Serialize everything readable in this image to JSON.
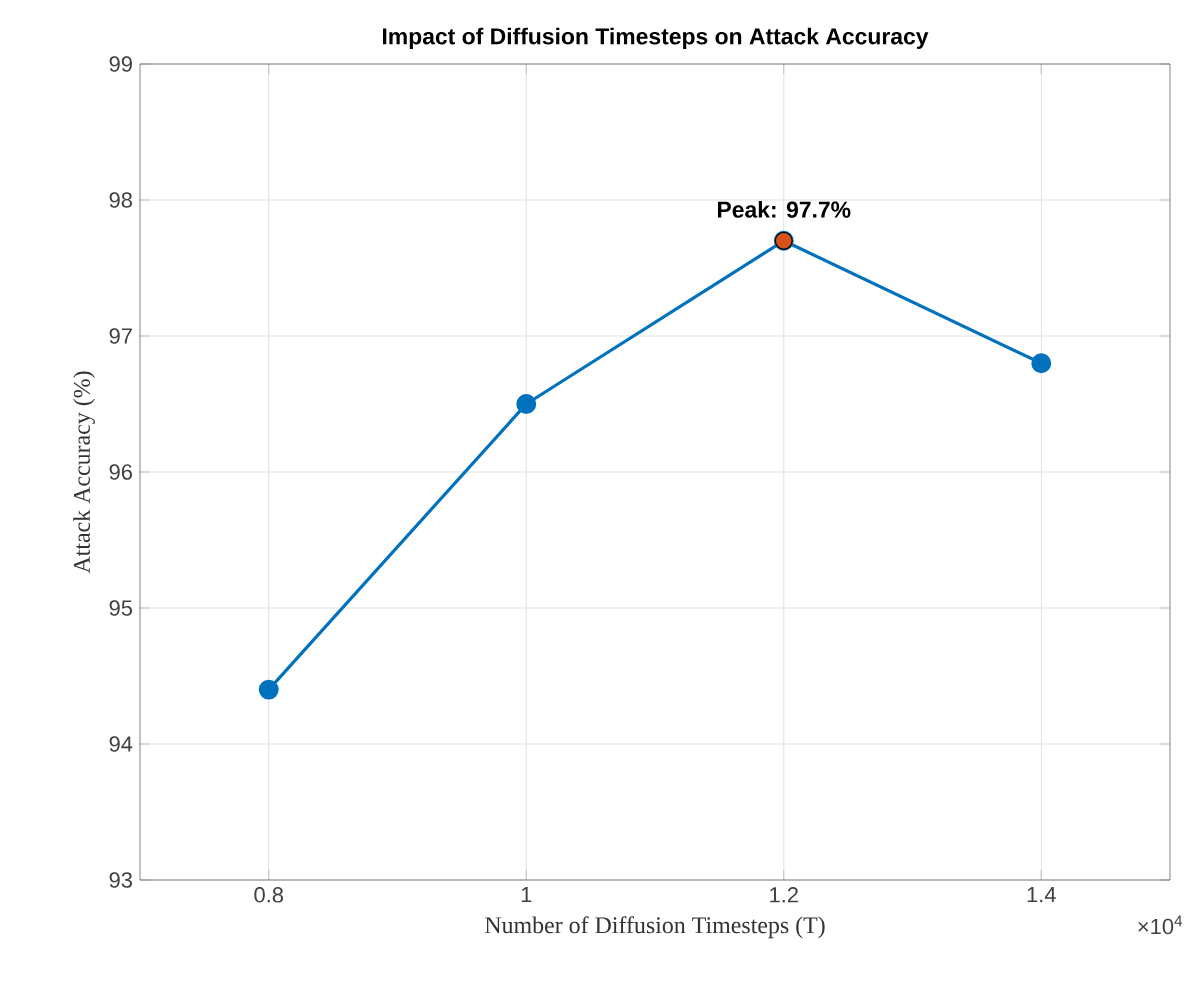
{
  "chart_data": {
    "type": "line",
    "title": "Impact of Diffusion Timesteps on Attack Accuracy",
    "xlabel": "Number of Diffusion Timesteps (T)",
    "ylabel": "Attack Accuracy (%)",
    "x": [
      0.8,
      1,
      1.2,
      1.4
    ],
    "series": [
      {
        "color": "#0072bd",
        "values": [
          94.4,
          96.5,
          97.7,
          96.8
        ]
      },
      {
        "type": "scatter",
        "x": [
          1.2
        ],
        "color": "#d95319",
        "values": [
          97.7
        ]
      }
    ],
    "xlim": [
      0.7,
      1.5
    ],
    "xticks": [
      0.8,
      1,
      1.2,
      1.4
    ],
    "ylim": [
      93,
      99
    ],
    "yticks": [
      93,
      94,
      95,
      96,
      97,
      98,
      99
    ],
    "grid": true,
    "marker": "circle",
    "line_style": "solid",
    "annotations": [
      {
        "text": "Peak: 97.7%",
        "x": 1.2,
        "y": 97.7
      },
      "×10$^{4}$"
    ]
  }
}
